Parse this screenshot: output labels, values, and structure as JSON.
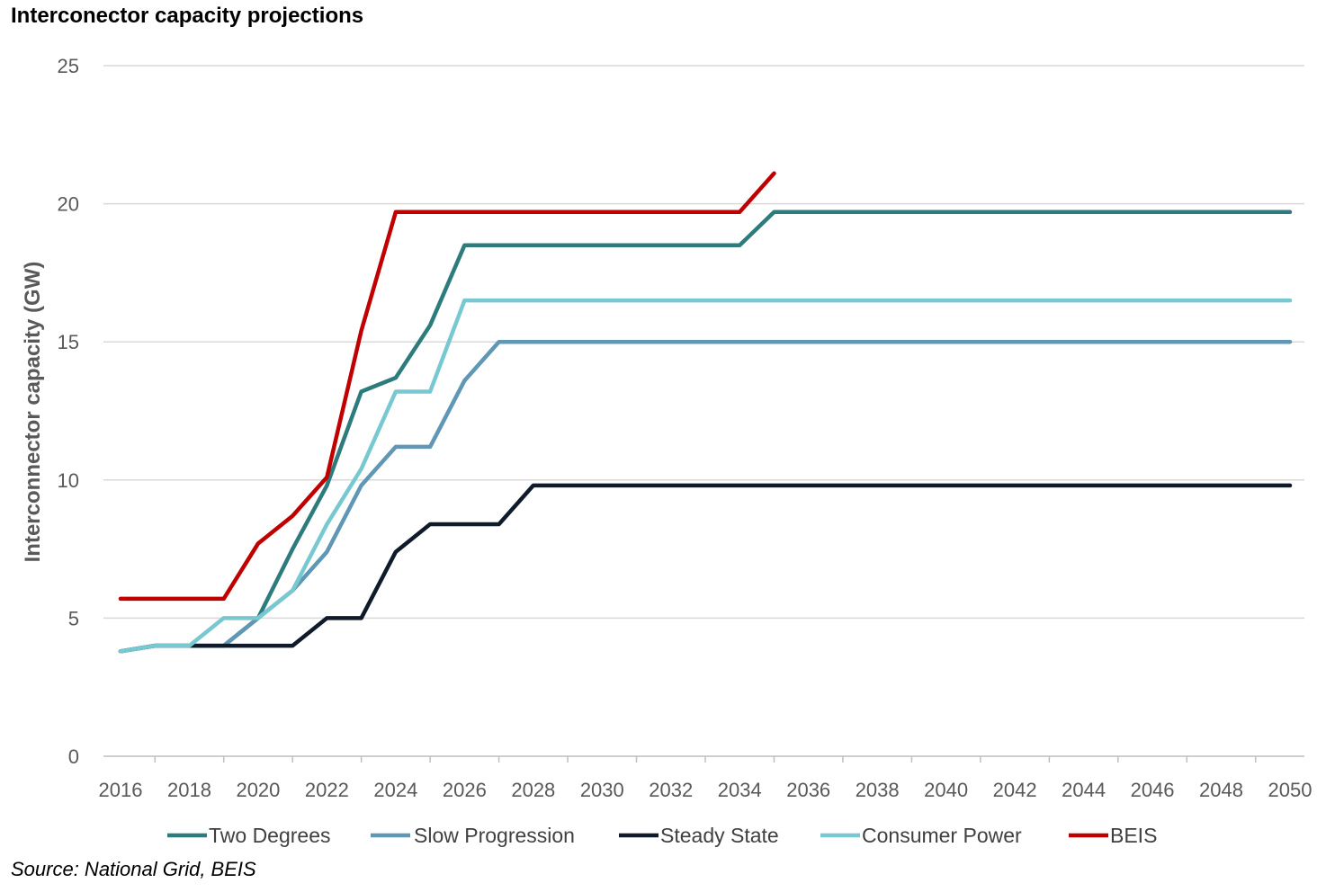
{
  "chart_data": {
    "type": "line",
    "title": "Interconector capacity projections",
    "ylabel": "Interconnector capacity (GW)",
    "xlabel": "",
    "xlim": [
      2016,
      2050
    ],
    "ylim": [
      0,
      25
    ],
    "yticks": [
      0,
      5,
      10,
      15,
      20,
      25
    ],
    "xticks": [
      2016,
      2018,
      2020,
      2022,
      2024,
      2026,
      2028,
      2030,
      2032,
      2034,
      2036,
      2038,
      2040,
      2042,
      2044,
      2046,
      2048,
      2050
    ],
    "grid": true,
    "legend": "bottom",
    "series": [
      {
        "name": "Two Degrees",
        "color": "#2e7b7e",
        "points": [
          [
            2016,
            3.8
          ],
          [
            2017,
            4.0
          ],
          [
            2018,
            4.0
          ],
          [
            2019,
            4.0
          ],
          [
            2020,
            5.0
          ],
          [
            2021,
            7.5
          ],
          [
            2022,
            9.8
          ],
          [
            2023,
            13.2
          ],
          [
            2024,
            13.7
          ],
          [
            2025,
            15.6
          ],
          [
            2026,
            18.5
          ],
          [
            2034,
            18.5
          ],
          [
            2035,
            19.7
          ],
          [
            2050,
            19.7
          ]
        ]
      },
      {
        "name": "Slow Progression",
        "color": "#5f97b4",
        "points": [
          [
            2016,
            3.8
          ],
          [
            2017,
            4.0
          ],
          [
            2018,
            4.0
          ],
          [
            2019,
            4.0
          ],
          [
            2020,
            5.0
          ],
          [
            2021,
            6.0
          ],
          [
            2022,
            7.4
          ],
          [
            2023,
            9.8
          ],
          [
            2024,
            11.2
          ],
          [
            2025,
            11.2
          ],
          [
            2026,
            13.6
          ],
          [
            2027,
            15.0
          ],
          [
            2050,
            15.0
          ]
        ]
      },
      {
        "name": "Steady State",
        "color": "#0f1a2b",
        "points": [
          [
            2016,
            3.8
          ],
          [
            2017,
            4.0
          ],
          [
            2018,
            4.0
          ],
          [
            2019,
            4.0
          ],
          [
            2020,
            4.0
          ],
          [
            2021,
            4.0
          ],
          [
            2022,
            5.0
          ],
          [
            2023,
            5.0
          ],
          [
            2024,
            7.4
          ],
          [
            2025,
            8.4
          ],
          [
            2026,
            8.4
          ],
          [
            2027,
            8.4
          ],
          [
            2028,
            9.8
          ],
          [
            2050,
            9.8
          ]
        ]
      },
      {
        "name": "Consumer Power",
        "color": "#78c8d2",
        "points": [
          [
            2016,
            3.8
          ],
          [
            2017,
            4.0
          ],
          [
            2018,
            4.0
          ],
          [
            2019,
            5.0
          ],
          [
            2020,
            5.0
          ],
          [
            2021,
            6.0
          ],
          [
            2022,
            8.4
          ],
          [
            2023,
            10.4
          ],
          [
            2024,
            13.2
          ],
          [
            2025,
            13.2
          ],
          [
            2026,
            16.5
          ],
          [
            2050,
            16.5
          ]
        ]
      },
      {
        "name": "BEIS",
        "color": "#c00000",
        "points": [
          [
            2016,
            5.7
          ],
          [
            2017,
            5.7
          ],
          [
            2018,
            5.7
          ],
          [
            2019,
            5.7
          ],
          [
            2020,
            7.7
          ],
          [
            2021,
            8.7
          ],
          [
            2022,
            10.1
          ],
          [
            2023,
            15.4
          ],
          [
            2024,
            19.7
          ],
          [
            2034,
            19.7
          ],
          [
            2035,
            21.1
          ]
        ]
      }
    ]
  },
  "source": "Source: National Grid, BEIS"
}
